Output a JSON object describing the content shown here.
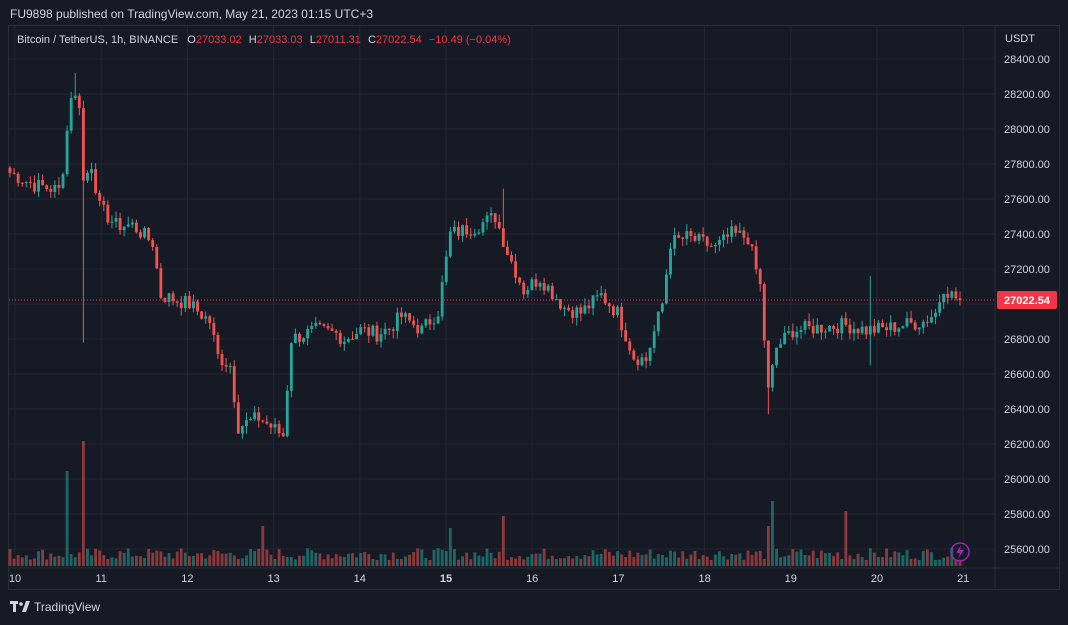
{
  "header": {
    "published": "FU9898 published on TradingView.com, May 21, 2023 01:15 UTC+3"
  },
  "legend": {
    "symbol": "Bitcoin / TetherUS, 1h, BINANCE",
    "o_label": "O",
    "o_value": "27033.02",
    "h_label": "H",
    "h_value": "27033.03",
    "l_label": "L",
    "l_value": "27011.31",
    "c_label": "C",
    "c_value": "27022.54",
    "change": "−10.49 (−0.04%)"
  },
  "footer": {
    "brand": "TradingView"
  },
  "colors": {
    "up": "#26a69a",
    "down": "#ef5350",
    "bg": "#161a25",
    "grid": "#232733",
    "axis_text": "#d1d4dc",
    "price_tag": "#f23645"
  },
  "chart_data": {
    "type": "candlestick",
    "title": "Bitcoin / TetherUS, 1h, BINANCE",
    "y_axis_label": "USDT",
    "ylim": [
      25520,
      28560
    ],
    "y_ticks": [
      25600,
      25800,
      26000,
      26200,
      26400,
      26600,
      26800,
      27000,
      27200,
      27400,
      27600,
      27800,
      28000,
      28200,
      28400
    ],
    "y_tick_labels": [
      "25600.00",
      "25800.00",
      "26000.00",
      "26200.00",
      "26400.00",
      "26600.00",
      "26800.00",
      "27000.00",
      "27200.00",
      "27400.00",
      "27600.00",
      "27800.00",
      "28000.00",
      "28200.00",
      "28400.00"
    ],
    "x_ticks": [
      "10",
      "11",
      "12",
      "13",
      "14",
      "15",
      "16",
      "17",
      "18",
      "19",
      "20",
      "21"
    ],
    "x_ticks_bold": [
      "15"
    ],
    "last_price": 27022.54,
    "last_price_label": "27022.54",
    "anchors": [
      [
        0,
        27750
      ],
      [
        6,
        27680
      ],
      [
        12,
        27650
      ],
      [
        13,
        27780
      ],
      [
        15,
        28200
      ],
      [
        17,
        28150
      ],
      [
        18,
        27700
      ],
      [
        20,
        27800
      ],
      [
        22,
        27550
      ],
      [
        26,
        27450
      ],
      [
        30,
        27450
      ],
      [
        35,
        27350
      ],
      [
        37,
        27050
      ],
      [
        44,
        27000
      ],
      [
        49,
        26900
      ],
      [
        51,
        26700
      ],
      [
        54,
        26650
      ],
      [
        56,
        26300
      ],
      [
        61,
        26350
      ],
      [
        67,
        26250
      ],
      [
        69,
        26800
      ],
      [
        75,
        26850
      ],
      [
        80,
        26830
      ],
      [
        82,
        26800
      ],
      [
        86,
        26850
      ],
      [
        90,
        26830
      ],
      [
        93,
        26860
      ],
      [
        96,
        26930
      ],
      [
        101,
        26850
      ],
      [
        105,
        26960
      ],
      [
        108,
        27400
      ],
      [
        114,
        27440
      ],
      [
        119,
        27500
      ],
      [
        122,
        27300
      ],
      [
        126,
        27080
      ],
      [
        130,
        27150
      ],
      [
        136,
        26980
      ],
      [
        140,
        26950
      ],
      [
        145,
        27050
      ],
      [
        149,
        26950
      ],
      [
        153,
        26700
      ],
      [
        156,
        26680
      ],
      [
        160,
        27000
      ],
      [
        162,
        27350
      ],
      [
        166,
        27380
      ],
      [
        170,
        27350
      ],
      [
        173,
        27320
      ],
      [
        177,
        27400
      ],
      [
        181,
        27380
      ],
      [
        184,
        27100
      ],
      [
        186,
        26500
      ],
      [
        188,
        26750
      ],
      [
        192,
        26850
      ],
      [
        200,
        26870
      ],
      [
        205,
        26880
      ],
      [
        210,
        26850
      ],
      [
        215,
        26860
      ],
      [
        219,
        26880
      ],
      [
        224,
        26900
      ],
      [
        227,
        26950
      ],
      [
        229,
        27100
      ],
      [
        231,
        27050
      ],
      [
        233,
        27022
      ]
    ],
    "volume_bars": 234,
    "volume_spikes": [
      [
        14,
        95
      ],
      [
        18,
        125
      ],
      [
        62,
        40
      ],
      [
        121,
        50
      ],
      [
        187,
        65
      ],
      [
        205,
        55
      ],
      [
        186,
        40
      ],
      [
        108,
        38
      ]
    ]
  }
}
